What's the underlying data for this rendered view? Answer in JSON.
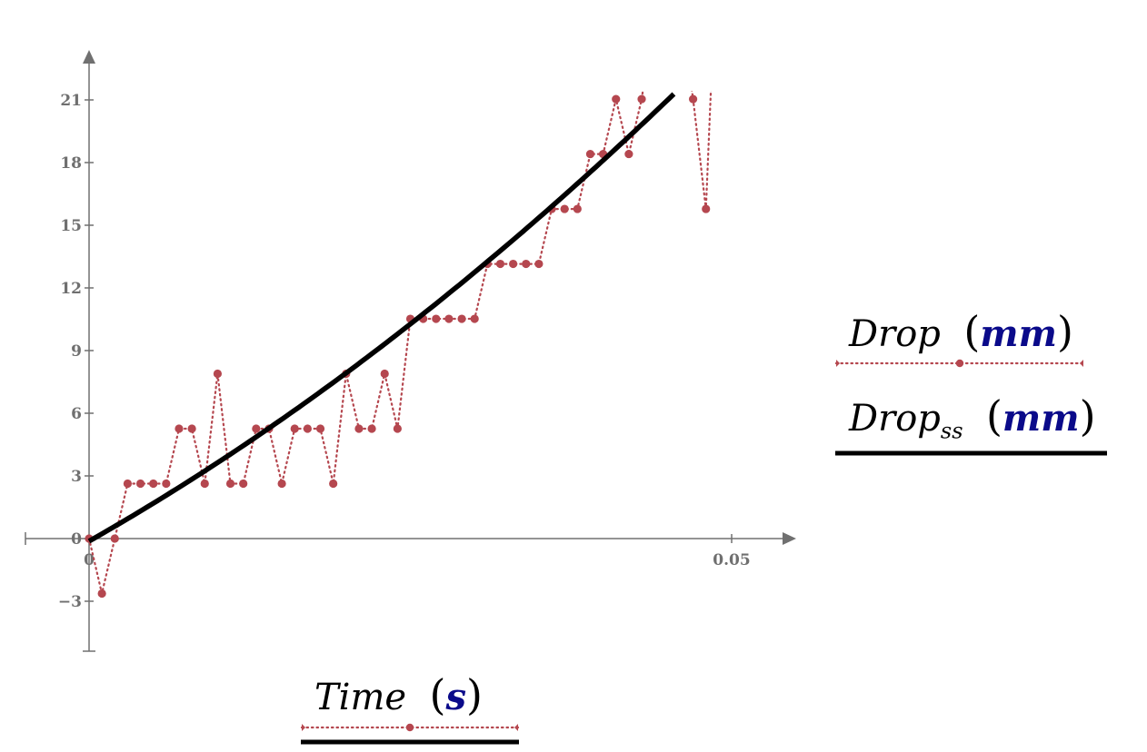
{
  "chart_data": {
    "type": "line",
    "title": "",
    "xlabel": "Time (s)",
    "ylabel": "Drop (mm) / Drop_ss (mm)",
    "x_axis": {
      "label_var": "Time",
      "label_unit": "s",
      "ticks": [
        "0",
        "0.05"
      ],
      "range": [
        -0.005,
        0.055
      ]
    },
    "y_axis": {
      "ticks": [
        "−3",
        "0",
        "3",
        "6",
        "9",
        "12",
        "15",
        "18",
        "21"
      ],
      "range": [
        -5.4,
        23.5
      ]
    },
    "grid": false,
    "legend_position": "right",
    "series": [
      {
        "name": "Drop (mm)",
        "label_var": "Drop",
        "label_sub": "",
        "label_unit": "mm",
        "style": "dotted-with-markers",
        "color": "#b5474f",
        "x": [
          0,
          0.001,
          0.002,
          0.003,
          0.004,
          0.005,
          0.006,
          0.007,
          0.008,
          0.009,
          0.01,
          0.011,
          0.012,
          0.013,
          0.014,
          0.015,
          0.016,
          0.017,
          0.018,
          0.019,
          0.02,
          0.021,
          0.022,
          0.023,
          0.024,
          0.025,
          0.026,
          0.027,
          0.028,
          0.029,
          0.03,
          0.031,
          0.032,
          0.033,
          0.034,
          0.035,
          0.036,
          0.037,
          0.038,
          0.039,
          0.04,
          0.041,
          0.042,
          0.043,
          0.047,
          0.048
        ],
        "values": [
          0,
          -2.63,
          0,
          2.63,
          2.63,
          2.63,
          2.63,
          5.26,
          5.26,
          2.63,
          7.89,
          2.63,
          2.63,
          5.26,
          5.26,
          2.63,
          5.26,
          5.26,
          5.26,
          2.63,
          7.89,
          5.26,
          5.26,
          7.89,
          5.26,
          10.52,
          10.52,
          10.52,
          10.52,
          10.52,
          10.52,
          13.15,
          13.15,
          13.15,
          13.15,
          13.15,
          15.78,
          15.78,
          15.78,
          18.41,
          18.41,
          21.04,
          18.41,
          21.04,
          21.04,
          15.78
        ],
        "note": "points between t=0.043 and t=0.047 and after t=0.048 lie above the visible y-range"
      },
      {
        "name": "Drop_ss (mm)",
        "label_var": "Drop",
        "label_sub": "ss",
        "label_unit": "mm",
        "style": "solid-thick",
        "color": "#000000",
        "x": [
          0,
          0.005,
          0.01,
          0.015,
          0.02,
          0.025,
          0.03,
          0.035,
          0.04,
          0.0455
        ],
        "values": [
          -0.3,
          1.7,
          3.8,
          5.9,
          8.0,
          10.2,
          12.6,
          15.2,
          18.0,
          21.5
        ]
      }
    ]
  },
  "legend": {
    "series0": {
      "var": "Drop",
      "sub": "",
      "unit": "mm"
    },
    "series1": {
      "var": "Drop",
      "sub": "ss",
      "unit": "mm"
    }
  },
  "xlegend": {
    "var": "Time",
    "unit": "s"
  },
  "paren_open": "(",
  "paren_close": ")"
}
